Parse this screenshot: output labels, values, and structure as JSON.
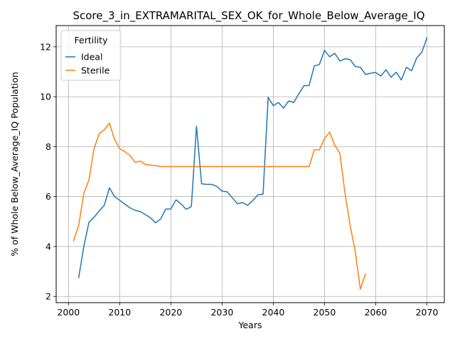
{
  "chart_data": {
    "type": "line",
    "title": "Score_3_in_EXTRAMARITAL_SEX_OK_for_Whole_Below_Average_IQ",
    "xlabel": "Years",
    "ylabel": "% of Whole Below_Average_IQ Population",
    "xlim": [
      1997.6,
      2073.4
    ],
    "ylim": [
      1.75,
      12.85
    ],
    "xticks": [
      2000,
      2010,
      2020,
      2030,
      2040,
      2050,
      2060,
      2070
    ],
    "yticks": [
      2,
      4,
      6,
      8,
      10,
      12
    ],
    "grid": true,
    "legend": {
      "title": "Fertility",
      "placement": "top-left"
    },
    "series": [
      {
        "name": "Ideal",
        "color": "#1f77b4",
        "x": [
          2002,
          2003,
          2004,
          2005,
          2006,
          2007,
          2008,
          2009,
          2010,
          2011,
          2012,
          2013,
          2014,
          2015,
          2016,
          2017,
          2018,
          2019,
          2020,
          2021,
          2022,
          2023,
          2024,
          2025,
          2026,
          2027,
          2028,
          2029,
          2030,
          2031,
          2032,
          2033,
          2034,
          2035,
          2036,
          2037,
          2038,
          2039,
          2040,
          2041,
          2042,
          2043,
          2044,
          2045,
          2046,
          2047,
          2048,
          2049,
          2050,
          2051,
          2052,
          2053,
          2054,
          2055,
          2056,
          2057,
          2058,
          2059,
          2060,
          2061,
          2062,
          2063,
          2064,
          2065,
          2066,
          2067,
          2068,
          2069,
          2070
        ],
        "values": [
          2.75,
          4.0,
          4.97,
          5.17,
          5.42,
          5.65,
          6.35,
          6.0,
          5.85,
          5.7,
          5.55,
          5.45,
          5.4,
          5.28,
          5.15,
          4.95,
          5.1,
          5.5,
          5.5,
          5.87,
          5.7,
          5.49,
          5.6,
          8.82,
          6.51,
          6.49,
          6.49,
          6.4,
          6.22,
          6.19,
          5.95,
          5.71,
          5.76,
          5.65,
          5.84,
          6.07,
          6.1,
          9.98,
          9.64,
          9.77,
          9.54,
          9.83,
          9.77,
          10.12,
          10.44,
          10.45,
          11.23,
          11.29,
          11.86,
          11.6,
          11.74,
          11.43,
          11.52,
          11.49,
          11.21,
          11.18,
          10.89,
          10.94,
          10.97,
          10.83,
          11.08,
          10.78,
          10.98,
          10.67,
          11.18,
          11.04,
          11.55,
          11.78,
          12.36
        ]
      },
      {
        "name": "Sterile",
        "color": "#ff7f0e",
        "x": [
          2001,
          2002,
          2003,
          2004,
          2005,
          2006,
          2007,
          2008,
          2009,
          2010,
          2011,
          2012,
          2013,
          2014,
          2015,
          2016,
          2017,
          2018,
          2019,
          2020,
          2021,
          2022,
          2023,
          2024,
          2025,
          2026,
          2027,
          2028,
          2029,
          2030,
          2031,
          2032,
          2033,
          2034,
          2035,
          2036,
          2037,
          2038,
          2039,
          2040,
          2041,
          2042,
          2043,
          2044,
          2045,
          2046,
          2047,
          2048,
          2049,
          2050,
          2051,
          2052,
          2053,
          2054,
          2055,
          2056,
          2057,
          2058
        ],
        "values": [
          4.23,
          4.85,
          6.13,
          6.67,
          7.92,
          8.52,
          8.67,
          8.94,
          8.29,
          7.92,
          7.8,
          7.65,
          7.37,
          7.42,
          7.29,
          7.26,
          7.24,
          7.2,
          7.2,
          7.2,
          7.2,
          7.2,
          7.2,
          7.2,
          7.2,
          7.2,
          7.2,
          7.2,
          7.2,
          7.2,
          7.2,
          7.2,
          7.2,
          7.2,
          7.2,
          7.2,
          7.2,
          7.2,
          7.2,
          7.2,
          7.2,
          7.2,
          7.2,
          7.2,
          7.2,
          7.2,
          7.2,
          7.87,
          7.87,
          8.33,
          8.58,
          8.06,
          7.73,
          6.14,
          4.85,
          3.8,
          2.29,
          2.9
        ]
      }
    ]
  }
}
